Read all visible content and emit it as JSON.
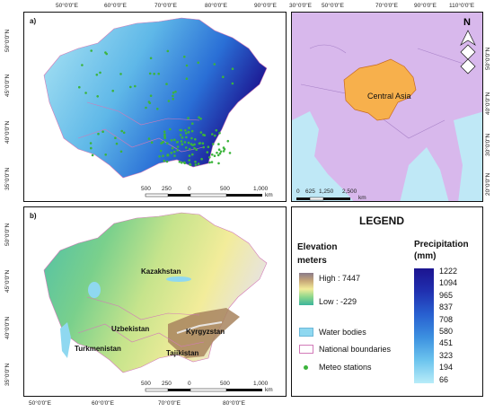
{
  "panel_a": {
    "label": "a)",
    "lon_ticks": [
      "50°0'0\"E",
      "60°0'0\"E",
      "70°0'0\"E",
      "80°0'0\"E",
      "90°0'0\"E"
    ],
    "lat_ticks": [
      "50°0'0\"N",
      "45°0'0\"N",
      "40°0'0\"N",
      "35°0'0\"N"
    ],
    "scale": [
      "500",
      "250",
      "0",
      "500",
      "1,000"
    ],
    "scale_unit": "km"
  },
  "panel_overview": {
    "lon_ticks": [
      "30°0'0\"E",
      "50°0'0\"E",
      "70°0'0\"E",
      "90°0'0\"E",
      "110°0'0\"E"
    ],
    "lat_ticks": [
      "50°0'0\"N",
      "40°0'0\"N",
      "30°0'0\"N",
      "20°0'0\"N"
    ],
    "region_label": "Central Asia",
    "scale": [
      "0",
      "625",
      "1,250",
      "2,500"
    ],
    "scale_unit": "km",
    "north_letter": "N"
  },
  "panel_b": {
    "label": "b)",
    "lon_ticks": [
      "50°0'0\"E",
      "60°0'0\"E",
      "70°0'0\"E",
      "80°0'0\"E"
    ],
    "lat_ticks": [
      "50°0'0\"N",
      "45°0'0\"N",
      "40°0'0\"N",
      "35°0'0\"N"
    ],
    "scale": [
      "500",
      "250",
      "0",
      "500",
      "1,000"
    ],
    "scale_unit": "km",
    "countries": [
      "Kazakhstan",
      "Uzbekistan",
      "Kyrgyzstan",
      "Turkmenistan",
      "Tajikistan"
    ]
  },
  "legend": {
    "title": "LEGEND",
    "elevation_title": "Elevation",
    "elevation_unit": "meters",
    "elevation_high": "High : 7447",
    "elevation_low": "Low : -229",
    "water": "Water bodies",
    "boundaries": "National boundaries",
    "stations": "Meteo stations",
    "precip_title": "Precipitation",
    "precip_unit": "(mm)",
    "precip_values": [
      "1222",
      "1094",
      "965",
      "837",
      "708",
      "580",
      "451",
      "323",
      "194",
      "66"
    ]
  },
  "colors": {
    "precip_dark": "#1c1490",
    "precip_light": "#8fd8ee",
    "water": "#8fd8f0",
    "station": "#3cb43c",
    "boundary": "#d27ab8",
    "highlight": "#f7b04c",
    "land_overview": "#d8b8ec"
  }
}
